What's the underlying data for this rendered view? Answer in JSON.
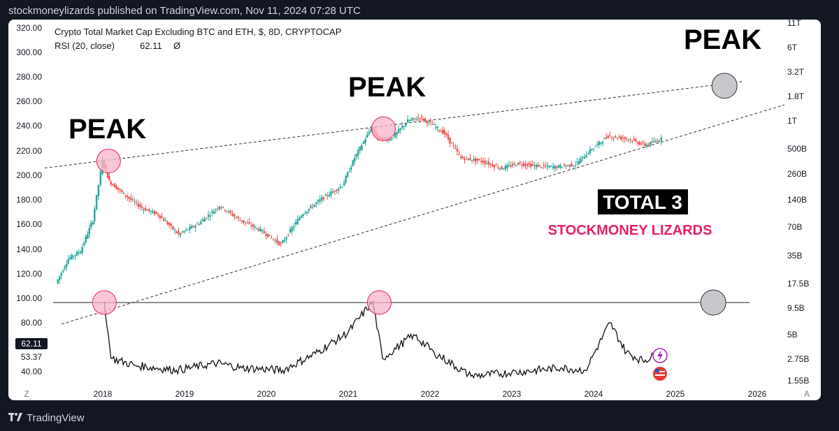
{
  "header": {
    "text": "stockmoneylizards published on TradingView.com, Nov 11, 2024 07:28 UTC"
  },
  "footer": {
    "brand": "TradingView",
    "logo_icon": "tradingview-logo-icon"
  },
  "legend": {
    "symbol": "Crypto Total Market Cap Excluding BTC and ETH, $, 8D, CRYPTOCAP",
    "rsi_label": "RSI (20, close)",
    "rsi_value": "62.11",
    "rsi_extra": "Ø"
  },
  "annotations": {
    "peak_label": "PEAK",
    "total3_label": "TOTAL 3",
    "brand_label": "STOCKMONEY LIZARDS"
  },
  "scale_buttons": {
    "left": "Z",
    "right": "A"
  },
  "colors": {
    "up_candle": "#26a69a",
    "down_candle": "#ef5350",
    "peak_circle": "#f8b4c8",
    "future_circle": "#c7c7cc",
    "brand_text": "#e91e63",
    "total3_bg": "#000000"
  },
  "chart_data": {
    "type": "candlestick",
    "title": "Crypto Total Market Cap Excluding BTC and ETH, $, 8D, CRYPTOCAP",
    "x_ticks": [
      "2018",
      "2019",
      "2020",
      "2021",
      "2022",
      "2023",
      "2024",
      "2025",
      "2026"
    ],
    "left_axis_ticks": [
      "320.00",
      "300.00",
      "280.00",
      "260.00",
      "240.00",
      "220.00",
      "200.00",
      "180.00",
      "160.00",
      "140.00",
      "120.00",
      "100.00",
      "80.00",
      "40.00"
    ],
    "right_axis_ticks": [
      "11T",
      "6T",
      "3.2T",
      "1.8T",
      "1T",
      "500B",
      "260B",
      "140B",
      "70B",
      "35B",
      "17.5B",
      "9.5B",
      "5B",
      "2.75B",
      "1.55B"
    ],
    "rsi_readouts": [
      "62.11",
      "53.37"
    ],
    "price_series": [
      {
        "t": 2017.45,
        "v": 10
      },
      {
        "t": 2017.6,
        "v": 20
      },
      {
        "t": 2017.75,
        "v": 25
      },
      {
        "t": 2017.9,
        "v": 60
      },
      {
        "t": 2018.02,
        "v": 320
      },
      {
        "t": 2018.1,
        "v": 180
      },
      {
        "t": 2018.3,
        "v": 120
      },
      {
        "t": 2018.5,
        "v": 85
      },
      {
        "t": 2018.7,
        "v": 70
      },
      {
        "t": 2018.95,
        "v": 40
      },
      {
        "t": 2019.2,
        "v": 55
      },
      {
        "t": 2019.45,
        "v": 90
      },
      {
        "t": 2019.7,
        "v": 60
      },
      {
        "t": 2019.95,
        "v": 45
      },
      {
        "t": 2020.2,
        "v": 30
      },
      {
        "t": 2020.45,
        "v": 70
      },
      {
        "t": 2020.7,
        "v": 110
      },
      {
        "t": 2020.95,
        "v": 160
      },
      {
        "t": 2021.1,
        "v": 350
      },
      {
        "t": 2021.3,
        "v": 800
      },
      {
        "t": 2021.4,
        "v": 600
      },
      {
        "t": 2021.55,
        "v": 600
      },
      {
        "t": 2021.75,
        "v": 1000
      },
      {
        "t": 2021.9,
        "v": 1100
      },
      {
        "t": 2022.05,
        "v": 900
      },
      {
        "t": 2022.2,
        "v": 700
      },
      {
        "t": 2022.4,
        "v": 350
      },
      {
        "t": 2022.65,
        "v": 320
      },
      {
        "t": 2022.9,
        "v": 260
      },
      {
        "t": 2023.1,
        "v": 300
      },
      {
        "t": 2023.3,
        "v": 280
      },
      {
        "t": 2023.55,
        "v": 270
      },
      {
        "t": 2023.8,
        "v": 290
      },
      {
        "t": 2024.0,
        "v": 450
      },
      {
        "t": 2024.2,
        "v": 650
      },
      {
        "t": 2024.45,
        "v": 600
      },
      {
        "t": 2024.65,
        "v": 500
      },
      {
        "t": 2024.85,
        "v": 600
      }
    ],
    "rsi_series": [
      {
        "t": 2018.02,
        "v": 98
      },
      {
        "t": 2018.1,
        "v": 50
      },
      {
        "t": 2018.4,
        "v": 44
      },
      {
        "t": 2018.9,
        "v": 40
      },
      {
        "t": 2019.4,
        "v": 46
      },
      {
        "t": 2019.7,
        "v": 42
      },
      {
        "t": 2020.2,
        "v": 40
      },
      {
        "t": 2020.6,
        "v": 54
      },
      {
        "t": 2021.0,
        "v": 72
      },
      {
        "t": 2021.3,
        "v": 98
      },
      {
        "t": 2021.42,
        "v": 50
      },
      {
        "t": 2021.8,
        "v": 70
      },
      {
        "t": 2022.05,
        "v": 55
      },
      {
        "t": 2022.5,
        "v": 35
      },
      {
        "t": 2023.0,
        "v": 38
      },
      {
        "t": 2023.6,
        "v": 42
      },
      {
        "t": 2023.9,
        "v": 40
      },
      {
        "t": 2024.2,
        "v": 80
      },
      {
        "t": 2024.4,
        "v": 55
      },
      {
        "t": 2024.6,
        "v": 48
      },
      {
        "t": 2024.85,
        "v": 55
      }
    ],
    "rsi_level": 97,
    "peaks": [
      {
        "t": 2018.02,
        "price": 320,
        "rsi": 97
      },
      {
        "t": 2021.38,
        "price": 800,
        "rsi": 97
      }
    ],
    "future_peak": {
      "t": 2025.6,
      "price": 2700,
      "rsi": 97
    }
  }
}
